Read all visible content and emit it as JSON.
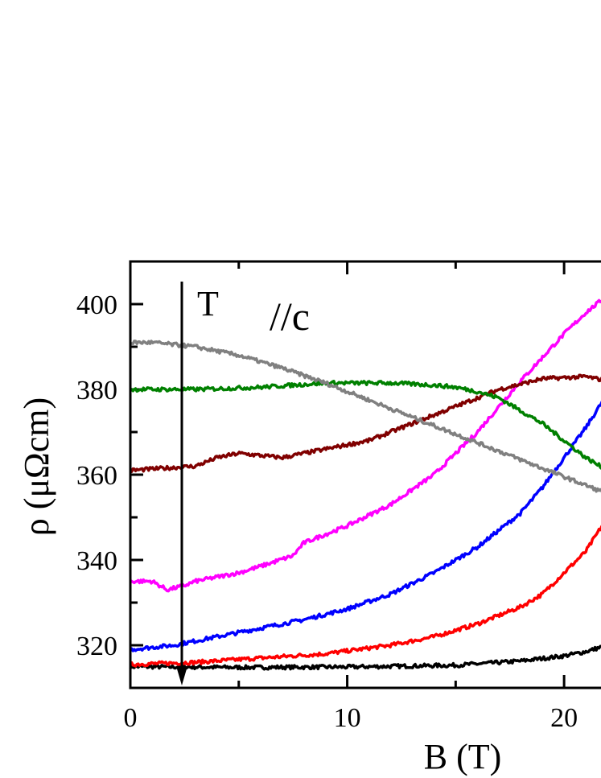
{
  "chart_data": {
    "type": "line",
    "xlabel": "B (T)",
    "ylabel": "ρ (μΩcm)",
    "xlim": [
      0,
      23
    ],
    "ylim": [
      310,
      410
    ],
    "xticks": [
      0,
      10,
      20
    ],
    "yticks": [
      320,
      340,
      360,
      380,
      400
    ],
    "grid": false,
    "annotations": [
      {
        "text": "T",
        "note": "arrow pointing downward"
      },
      {
        "text": "//c"
      }
    ],
    "series": [
      {
        "color": "#000000",
        "x": [
          0,
          5,
          10,
          15,
          18,
          20,
          21,
          22,
          23
        ],
        "y": [
          315,
          314.8,
          314.9,
          315.3,
          316.3,
          317.5,
          318.5,
          320,
          323
        ]
      },
      {
        "color": "#ff0000",
        "x": [
          0,
          3,
          6,
          9,
          12,
          14,
          16,
          18,
          19,
          20,
          21,
          22,
          23
        ],
        "y": [
          315.5,
          316,
          317,
          318,
          320,
          322,
          325,
          329,
          332,
          337,
          342,
          350,
          360
        ]
      },
      {
        "color": "#0000ff",
        "x": [
          0,
          2,
          4,
          6,
          8,
          10,
          12,
          14,
          16,
          18,
          19,
          20,
          21,
          22,
          23
        ],
        "y": [
          319,
          320,
          322,
          324,
          326,
          328.5,
          332,
          337,
          343,
          351,
          357,
          364,
          371,
          379,
          388
        ]
      },
      {
        "color": "#ff00ff",
        "x": [
          0,
          1,
          1.7,
          2.5,
          3,
          5,
          6,
          7.5,
          8,
          10,
          12,
          14,
          16,
          18,
          20,
          21,
          22,
          23
        ],
        "y": [
          335,
          335,
          333,
          334,
          335,
          337,
          338.5,
          341,
          344,
          348,
          353,
          360,
          370,
          382,
          393,
          398,
          402,
          402
        ]
      },
      {
        "color": "#800000",
        "x": [
          0,
          3,
          4,
          5,
          7,
          9,
          11,
          13,
          15,
          17,
          19,
          21,
          22,
          23
        ],
        "y": [
          361,
          362,
          364,
          365,
          364,
          366,
          368,
          372,
          376,
          380,
          382.5,
          383,
          382,
          380
        ]
      },
      {
        "color": "#008000",
        "x": [
          0,
          3,
          6,
          9,
          12,
          14,
          15,
          16,
          17,
          18,
          19,
          20,
          21,
          22,
          23
        ],
        "y": [
          380,
          380,
          380.5,
          381.5,
          381.5,
          381,
          380.5,
          379.5,
          378,
          375,
          372,
          368,
          364,
          361,
          358
        ]
      },
      {
        "color": "#808080",
        "x": [
          0,
          1,
          3,
          5,
          7,
          9,
          11,
          13,
          15,
          17,
          19,
          21,
          23
        ],
        "y": [
          391,
          391,
          390,
          388,
          385,
          381.5,
          377.5,
          373.5,
          369.5,
          365.5,
          361.5,
          357.5,
          353.5
        ]
      }
    ]
  }
}
